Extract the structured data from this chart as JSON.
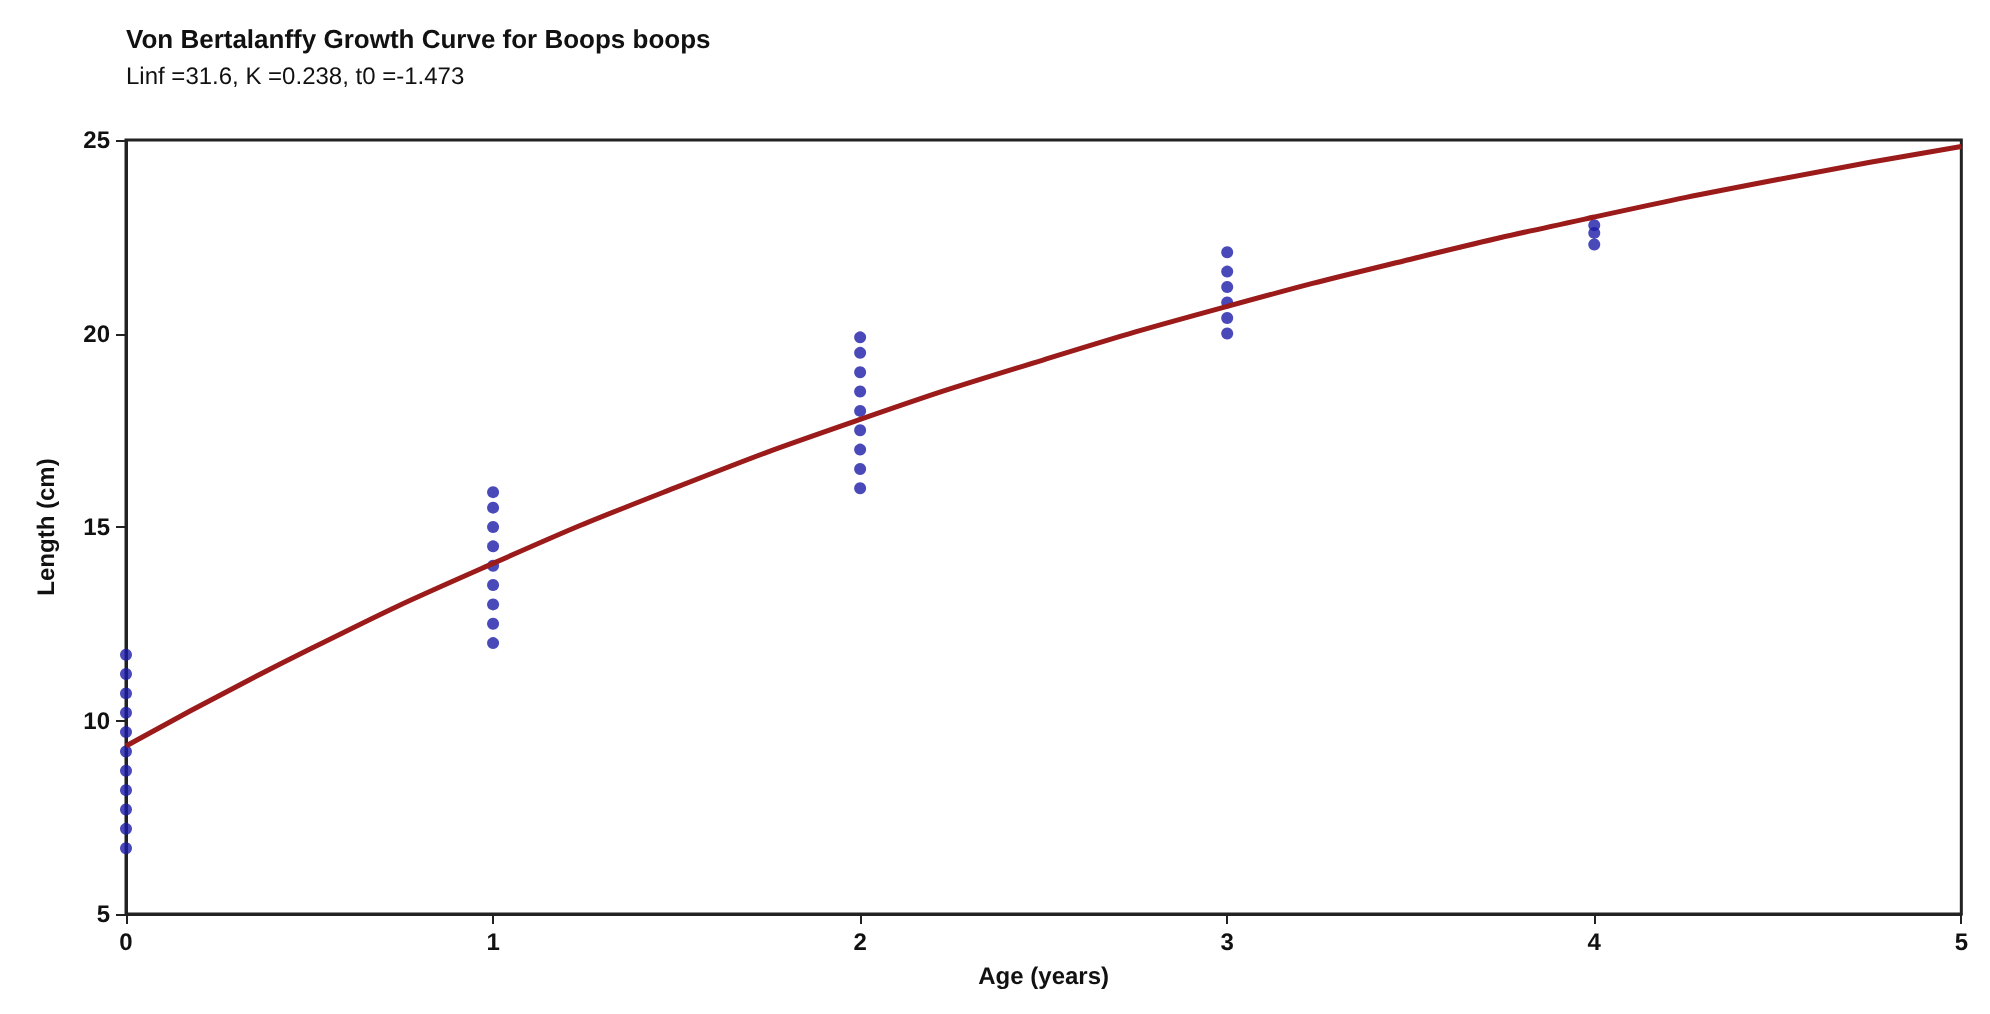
{
  "chart_data": {
    "type": "scatter",
    "title": "Von Bertalanffy Growth Curve for Boops boops",
    "subtitle": "Linf =31.6, K =0.238, t0 =-1.473",
    "xlabel": "Age (years)",
    "ylabel": "Length (cm)",
    "xlim": [
      0,
      5
    ],
    "xticks": [
      0,
      1,
      2,
      3,
      4,
      5
    ],
    "ylim": [
      5,
      25
    ],
    "yticks": [
      5,
      10,
      15,
      20,
      25
    ],
    "grid": false,
    "series": [
      {
        "color": "#1c1ca8",
        "marker": "circle",
        "x": [
          0,
          0,
          0,
          0,
          0,
          0,
          0,
          0,
          0,
          0,
          0,
          1,
          1,
          1,
          1,
          1,
          1,
          1,
          1,
          1,
          2,
          2,
          2,
          2,
          2,
          2,
          2,
          2,
          2,
          3,
          3,
          3,
          3,
          3,
          3,
          4,
          4,
          4
        ],
        "values": [
          6.7,
          7.2,
          7.7,
          8.2,
          8.7,
          9.2,
          9.7,
          10.2,
          10.7,
          11.2,
          11.7,
          12.0,
          12.5,
          13.0,
          13.5,
          14.0,
          14.5,
          15.0,
          15.5,
          15.9,
          16.0,
          16.5,
          17.0,
          17.5,
          18.0,
          18.5,
          19.0,
          19.5,
          19.9,
          20.0,
          20.4,
          20.8,
          21.2,
          21.6,
          22.1,
          22.3,
          22.6,
          22.8
        ]
      },
      {
        "type": "line",
        "color": "#9b1b1b",
        "marker": "none",
        "line_style": "solid",
        "x": [
          0,
          0.5,
          1,
          1.5,
          2,
          2.5,
          3,
          3.5,
          4,
          4.5,
          5
        ],
        "values": [
          9.34,
          11.84,
          14.06,
          16.03,
          17.78,
          19.32,
          20.7,
          21.92,
          23.01,
          23.98,
          24.83
        ]
      }
    ]
  }
}
